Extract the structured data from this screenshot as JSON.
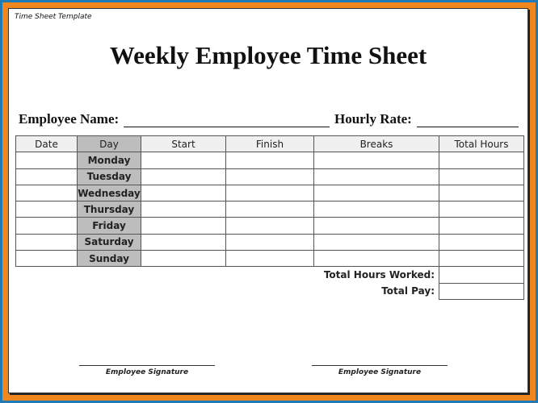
{
  "header": {
    "template_label": "Time Sheet Template",
    "title": "Weekly Employee Time Sheet"
  },
  "fields": {
    "employee_name": "Employee Name:",
    "hourly_rate": "Hourly Rate:"
  },
  "table": {
    "columns": [
      "Date",
      "Day",
      "Start",
      "Finish",
      "Breaks",
      "Total Hours"
    ],
    "days": [
      "Monday",
      "Tuesday",
      "Wednesday",
      "Thursday",
      "Friday",
      "Saturday",
      "Sunday"
    ],
    "total_hours_label": "Total Hours Worked:",
    "total_pay_label": "Total Pay:"
  },
  "signatures": [
    "Employee Signature",
    "Employee Signature"
  ],
  "colors": {
    "outer_border": "#1f7ab8",
    "inner_border": "#f0861e",
    "day_column": "#bdbdbd"
  }
}
